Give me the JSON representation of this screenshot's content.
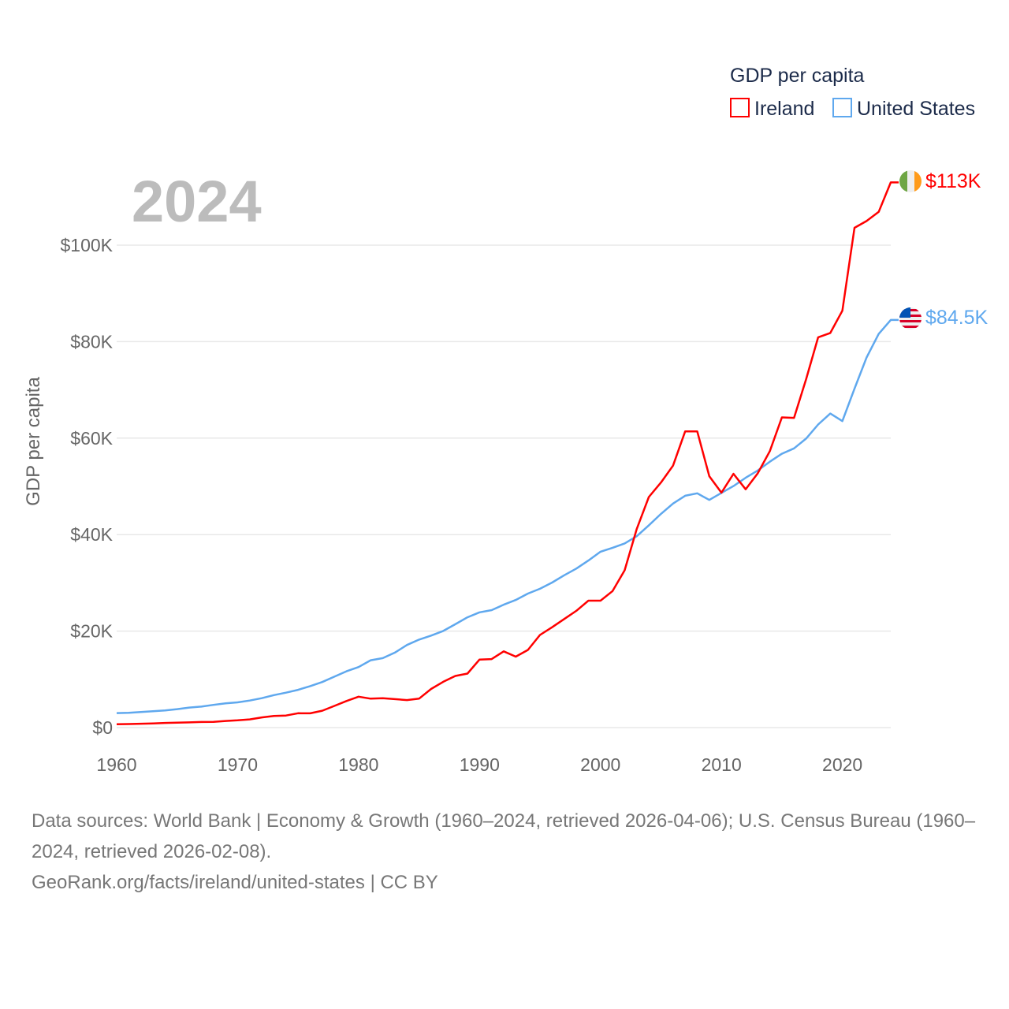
{
  "chart_data": {
    "type": "line",
    "title": "GDP per capita",
    "year_label": "2024",
    "xlabel": "",
    "ylabel": "GDP per capita",
    "xlim": [
      1960,
      2024
    ],
    "ylim": [
      0,
      118
    ],
    "grid": true,
    "legend_placement": "top-right",
    "x_ticks": [
      1960,
      1970,
      1980,
      1990,
      2000,
      2010,
      2020
    ],
    "x_tick_labels": [
      "1960",
      "1970",
      "1980",
      "1990",
      "2000",
      "2010",
      "2020"
    ],
    "y_ticks": [
      0,
      20,
      40,
      60,
      80,
      100
    ],
    "y_tick_labels": [
      "$0",
      "$20K",
      "$40K",
      "$60K",
      "$80K",
      "$100K"
    ],
    "units": "thousand US$",
    "x": [
      1960,
      1961,
      1962,
      1963,
      1964,
      1965,
      1966,
      1967,
      1968,
      1969,
      1970,
      1971,
      1972,
      1973,
      1974,
      1975,
      1976,
      1977,
      1978,
      1979,
      1980,
      1981,
      1982,
      1983,
      1984,
      1985,
      1986,
      1987,
      1988,
      1989,
      1990,
      1991,
      1992,
      1993,
      1994,
      1995,
      1996,
      1997,
      1998,
      1999,
      2000,
      2001,
      2002,
      2003,
      2004,
      2005,
      2006,
      2007,
      2008,
      2009,
      2010,
      2011,
      2012,
      2013,
      2014,
      2015,
      2016,
      2017,
      2018,
      2019,
      2020,
      2021,
      2022,
      2023,
      2024
    ],
    "series": [
      {
        "name": "Ireland",
        "color": "#ff0000",
        "end_label": "$113K",
        "flag": "ireland-flag",
        "values": [
          0.69,
          0.74,
          0.8,
          0.86,
          0.97,
          1.03,
          1.08,
          1.16,
          1.18,
          1.37,
          1.5,
          1.7,
          2.1,
          2.4,
          2.5,
          2.98,
          2.95,
          3.5,
          4.5,
          5.5,
          6.4,
          6.0,
          6.1,
          5.9,
          5.7,
          6.0,
          8.0,
          9.5,
          10.7,
          11.2,
          14.1,
          14.2,
          15.8,
          14.7,
          16.1,
          19.2,
          20.8,
          22.5,
          24.2,
          26.3,
          26.3,
          28.3,
          32.6,
          41.2,
          47.8,
          50.8,
          54.3,
          61.4,
          61.4,
          52.1,
          48.7,
          52.6,
          49.4,
          52.7,
          57.3,
          64.3,
          64.2,
          72.2,
          80.9,
          81.8,
          86.4,
          103.6,
          105.0,
          106.9,
          113.0
        ]
      },
      {
        "name": "United States",
        "color": "#5fa8ee",
        "end_label": "$84.5K",
        "flag": "united-states-flag",
        "values": [
          3.0,
          3.07,
          3.24,
          3.38,
          3.57,
          3.83,
          4.15,
          4.34,
          4.7,
          5.03,
          5.23,
          5.61,
          6.09,
          6.74,
          7.24,
          7.82,
          8.6,
          9.45,
          10.56,
          11.67,
          12.55,
          13.95,
          14.4,
          15.54,
          17.12,
          18.24,
          19.07,
          20.04,
          21.42,
          22.86,
          23.89,
          24.34,
          25.47,
          26.46,
          27.78,
          28.78,
          30.07,
          31.57,
          32.95,
          34.62,
          36.45,
          37.27,
          38.17,
          39.68,
          41.92,
          44.3,
          46.44,
          48.05,
          48.57,
          47.19,
          48.65,
          50.07,
          51.78,
          53.29,
          55.12,
          56.76,
          57.87,
          59.9,
          62.82,
          65.09,
          63.53,
          70.25,
          76.7,
          81.6,
          84.5
        ]
      }
    ]
  },
  "footer": {
    "sources": "Data sources: World Bank | Economy & Growth (1960–2024, retrieved 2026-04-06); U.S. Census Bureau (1960–2024, retrieved 2026-02-08).",
    "credit": "GeoRank.org/facts/ireland/united-states | CC BY"
  }
}
